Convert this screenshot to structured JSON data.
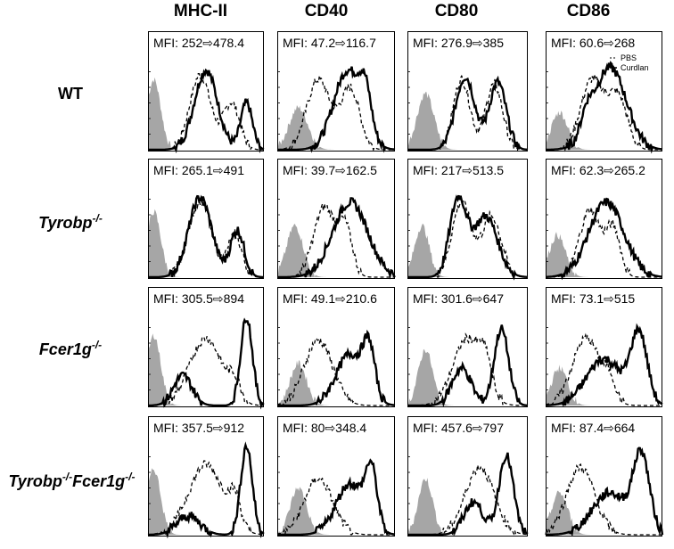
{
  "columns": [
    "MHC-II",
    "CD40",
    "CD80",
    "CD86"
  ],
  "rows": [
    {
      "label_main": "WT",
      "label_sup": ""
    },
    {
      "label_main": "Tyrobp",
      "label_sup": "-/-"
    },
    {
      "label_main": "Fcer1g",
      "label_sup": "-/-"
    },
    {
      "label_main": "Tyrobp",
      "label_sup": "-/-",
      "label_main2": "Fcer1g",
      "label_sup2": "-/-"
    }
  ],
  "legend": {
    "dashed": "PBS",
    "solid": "Curdlan"
  },
  "colors": {
    "isotype_fill": "#a6a6a6",
    "line": "#000000",
    "frame": "#000000"
  },
  "chart_data": {
    "type": "histogram-grid",
    "description": "Flow cytometry histograms; grey filled = isotype control, dashed = PBS, solid = Curdlan",
    "panels": [
      {
        "row": "WT",
        "marker": "MHC-II",
        "mfi_pbs": "252",
        "mfi_curdlan": "478.4",
        "mfi_label": "MFI: 252⇨478.4"
      },
      {
        "row": "WT",
        "marker": "CD40",
        "mfi_pbs": "47.2",
        "mfi_curdlan": "116.7",
        "mfi_label": "MFI: 47.2⇨116.7"
      },
      {
        "row": "WT",
        "marker": "CD80",
        "mfi_pbs": "276.9",
        "mfi_curdlan": "385",
        "mfi_label": "MFI: 276.9⇨385"
      },
      {
        "row": "WT",
        "marker": "CD86",
        "mfi_pbs": "60.6",
        "mfi_curdlan": "268",
        "mfi_label": "MFI: 60.6⇨268"
      },
      {
        "row": "Tyrobp-/-",
        "marker": "MHC-II",
        "mfi_pbs": "265.1",
        "mfi_curdlan": "491",
        "mfi_label": "MFI: 265.1⇨491"
      },
      {
        "row": "Tyrobp-/-",
        "marker": "CD40",
        "mfi_pbs": "39.7",
        "mfi_curdlan": "162.5",
        "mfi_label": "MFI: 39.7⇨162.5"
      },
      {
        "row": "Tyrobp-/-",
        "marker": "CD80",
        "mfi_pbs": "217",
        "mfi_curdlan": "513.5",
        "mfi_label": "MFI: 217⇨513.5"
      },
      {
        "row": "Tyrobp-/-",
        "marker": "CD86",
        "mfi_pbs": "62.3",
        "mfi_curdlan": "265.2",
        "mfi_label": "MFI: 62.3⇨265.2"
      },
      {
        "row": "Fcer1g-/-",
        "marker": "MHC-II",
        "mfi_pbs": "305.5",
        "mfi_curdlan": "894",
        "mfi_label": "MFI: 305.5⇨894"
      },
      {
        "row": "Fcer1g-/-",
        "marker": "CD40",
        "mfi_pbs": "49.1",
        "mfi_curdlan": "210.6",
        "mfi_label": "MFI: 49.1⇨210.6"
      },
      {
        "row": "Fcer1g-/-",
        "marker": "CD80",
        "mfi_pbs": "301.6",
        "mfi_curdlan": "647",
        "mfi_label": "MFI: 301.6⇨647"
      },
      {
        "row": "Fcer1g-/-",
        "marker": "CD86",
        "mfi_pbs": "73.1",
        "mfi_curdlan": "515",
        "mfi_label": "MFI: 73.1⇨515"
      },
      {
        "row": "Tyrobp-/-Fcer1g-/-",
        "marker": "MHC-II",
        "mfi_pbs": "357.5",
        "mfi_curdlan": "912",
        "mfi_label": "MFI: 357.5⇨912"
      },
      {
        "row": "Tyrobp-/-Fcer1g-/-",
        "marker": "CD40",
        "mfi_pbs": "80",
        "mfi_curdlan": "348.4",
        "mfi_label": "MFI: 80⇨348.4"
      },
      {
        "row": "Tyrobp-/-Fcer1g-/-",
        "marker": "CD80",
        "mfi_pbs": "457.6",
        "mfi_curdlan": "797",
        "mfi_label": "MFI: 457.6⇨797"
      },
      {
        "row": "Tyrobp-/-Fcer1g-/-",
        "marker": "CD86",
        "mfi_pbs": "87.4",
        "mfi_curdlan": "664",
        "mfi_label": "MFI: 87.4⇨664"
      }
    ]
  }
}
